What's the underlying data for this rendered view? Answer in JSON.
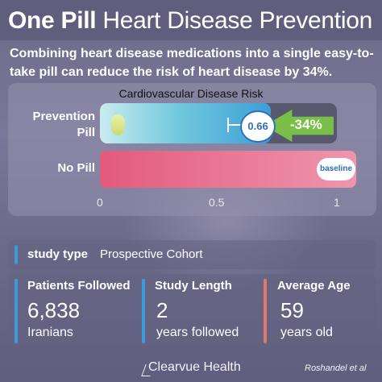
{
  "header": {
    "title_bold": "One Pill",
    "title_rest": "Heart Disease Prevention"
  },
  "subtitle": "Combining heart disease medications into a single easy-to-take pill can reduce the risk of heart disease by 34%.",
  "chart_data": {
    "type": "bar",
    "title": "Cardiovascular Disease Risk",
    "categories": [
      "Prevention Pill",
      "No Pill"
    ],
    "values": [
      0.66,
      1
    ],
    "xlim": [
      0,
      1
    ],
    "x_ticks": [
      "0",
      "0.5",
      "1"
    ],
    "value_label": "0.66",
    "baseline_label": "baseline",
    "reduction_label": "-34%",
    "colors": {
      "prevention": "#3c9fd6",
      "no_pill": "#e35a7c",
      "arrow": "#79be46"
    }
  },
  "study_type": {
    "label": "study type",
    "value": "Prospective Cohort",
    "accent": "#3f9bd8"
  },
  "stats": [
    {
      "label": "Patients Followed",
      "value": "6,838",
      "sub": "Iranians",
      "accent": "#3f9bd8"
    },
    {
      "label": "Study Length",
      "value": "2",
      "sub": "years followed",
      "accent": "#3f9bd8"
    },
    {
      "label": "Average Age",
      "value": "59",
      "sub": "years old",
      "accent": "#e07a6e"
    }
  ],
  "footer": {
    "brand": "Clearvue Health",
    "citation": "Roshandel et al"
  }
}
